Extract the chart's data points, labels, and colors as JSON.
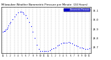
{
  "title": "Milwaukee Weather Barometric Pressure per Minute (24 Hours)",
  "bg_color": "#ffffff",
  "plot_bg": "#ffffff",
  "dot_color": "#0000ff",
  "legend_bg": "#0000cc",
  "legend_label": "Barometric Pressure",
  "x_ticks": [
    0,
    1,
    2,
    3,
    4,
    5,
    6,
    7,
    8,
    9,
    10,
    11,
    12,
    13,
    14,
    15,
    16,
    17,
    18,
    19,
    20,
    21,
    22,
    23
  ],
  "x_tick_labels": [
    "12",
    "1",
    "2",
    "3",
    "4",
    "5",
    "6",
    "7",
    "8",
    "9",
    "10",
    "11",
    "12",
    "1",
    "2",
    "3",
    "4",
    "5",
    "6",
    "7",
    "8",
    "9",
    "10",
    "11"
  ],
  "ylim": [
    29.64,
    30.14
  ],
  "y_ticks": [
    29.7,
    29.8,
    29.9,
    30.0,
    30.1
  ],
  "y_tick_labels": [
    "29.7",
    "29.8",
    "29.9",
    "30.0",
    "30.1"
  ],
  "data_x": [
    0,
    0.25,
    0.5,
    0.75,
    1,
    1.25,
    1.5,
    1.75,
    2,
    2.5,
    3,
    3.5,
    4,
    4.5,
    5,
    5.25,
    5.5,
    6,
    6.5,
    7,
    7.5,
    8,
    8.5,
    9,
    9.5,
    10,
    10.5,
    11,
    11.5,
    12,
    12.5,
    13,
    13.5,
    14,
    14.5,
    15,
    15.5,
    16,
    16.5,
    17,
    17.5,
    18,
    18.5,
    19,
    19.5,
    20,
    20.5,
    21,
    21.5,
    22,
    22.5,
    23
  ],
  "data_y": [
    29.87,
    29.875,
    29.88,
    29.89,
    29.9,
    29.92,
    29.94,
    29.96,
    29.98,
    30.01,
    30.04,
    30.06,
    30.08,
    30.09,
    30.09,
    30.08,
    30.07,
    30.05,
    30.02,
    29.98,
    29.93,
    29.87,
    29.8,
    29.73,
    29.68,
    29.66,
    29.66,
    29.66,
    29.66,
    29.66,
    29.67,
    29.68,
    29.69,
    29.7,
    29.72,
    29.73,
    29.74,
    29.75,
    29.75,
    29.75,
    29.76,
    29.75,
    29.74,
    29.73,
    29.72,
    29.71,
    29.7,
    29.7,
    29.69,
    29.68,
    29.68,
    29.69
  ]
}
